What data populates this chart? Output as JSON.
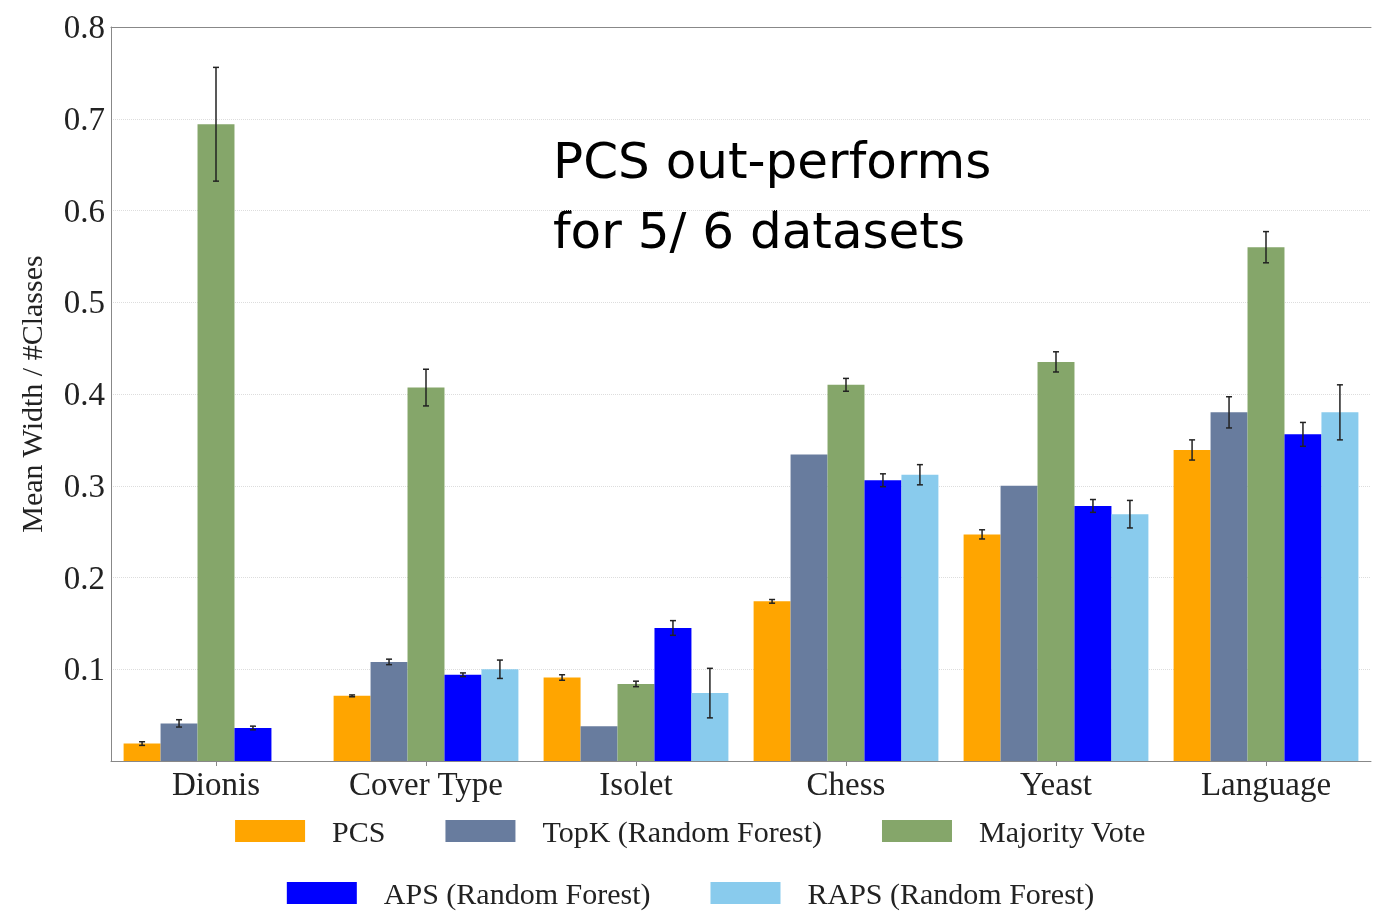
{
  "chart_data": {
    "type": "bar",
    "ylabel": "Mean Width / #Classes",
    "annotations": [
      "PCS out-performs\nfor 5/ 6 datasets"
    ],
    "categories": [
      "Dionis",
      "Cover Type",
      "Isolet",
      "Chess",
      "Yeast",
      "Language"
    ],
    "series": [
      {
        "name": "PCS",
        "color": "#ffa500",
        "values": [
          0.019,
          0.071,
          0.091,
          0.174,
          0.247,
          0.339
        ],
        "errors": [
          0.002,
          0.001,
          0.003,
          0.002,
          0.005,
          0.011
        ]
      },
      {
        "name": "TopK (Random Forest)",
        "color": "#687c9e",
        "values": [
          0.041,
          0.108,
          0.038,
          0.334,
          0.3,
          0.38
        ],
        "errors": [
          0.004,
          0.003,
          null,
          null,
          null,
          0.017
        ]
      },
      {
        "name": "Majority Vote",
        "color": "#85a66a",
        "values": [
          0.694,
          0.407,
          0.084,
          0.41,
          0.435,
          0.56
        ],
        "errors": [
          0.062,
          0.02,
          0.003,
          0.007,
          0.011,
          0.017
        ]
      },
      {
        "name": "APS (Random Forest)",
        "color": "#0000ff",
        "values": [
          0.036,
          0.094,
          0.145,
          0.306,
          0.278,
          0.356
        ],
        "errors": [
          0.002,
          0.002,
          0.008,
          0.007,
          0.007,
          0.013
        ]
      },
      {
        "name": "RAPS (Random Forest)",
        "color": "#89cbed",
        "values": [
          null,
          0.1,
          0.074,
          0.312,
          0.269,
          0.38
        ],
        "errors": [
          null,
          0.01,
          0.027,
          0.011,
          0.015,
          0.03
        ]
      }
    ],
    "ylim": [
      0,
      0.8
    ],
    "yticks": [
      0.1,
      0.2,
      0.3,
      0.4,
      0.5,
      0.6,
      0.7,
      0.8
    ],
    "grid": "y",
    "legend": "bottom"
  }
}
